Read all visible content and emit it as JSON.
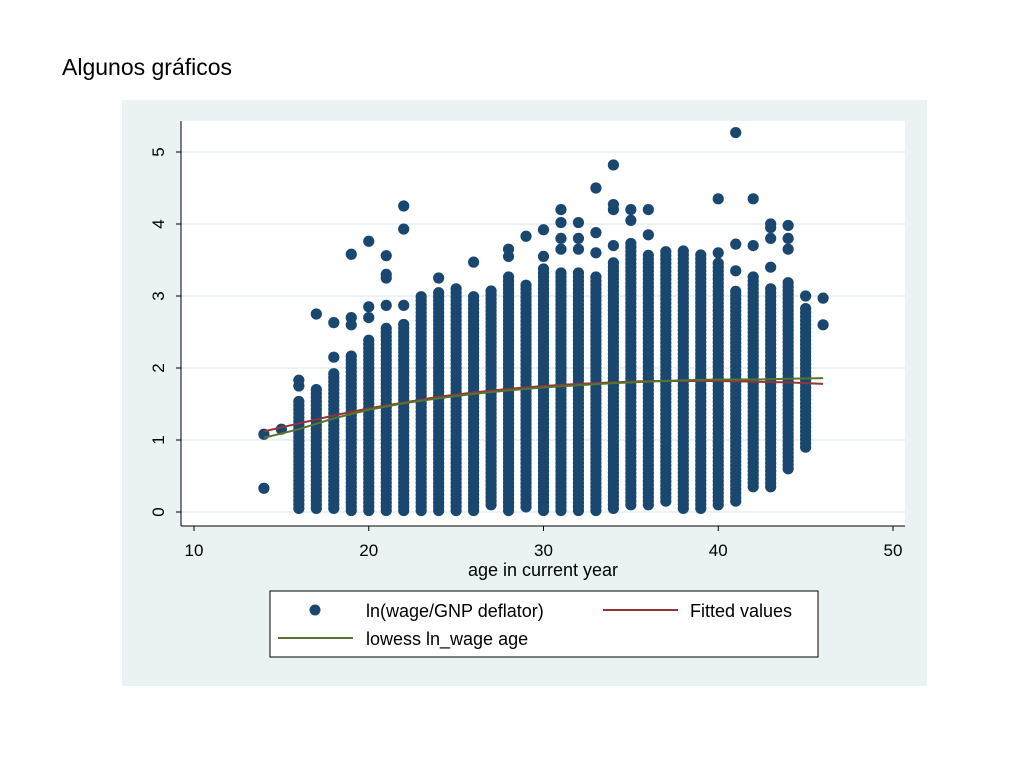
{
  "page": {
    "title": "Algunos gráficos"
  },
  "chart_data": {
    "type": "scatter",
    "xlabel": "age in current year",
    "ylabel": "",
    "xlim": [
      10,
      50
    ],
    "ylim": [
      0,
      5.4
    ],
    "x_ticks": [
      10,
      20,
      30,
      40,
      50
    ],
    "y_ticks": [
      0,
      1,
      2,
      3,
      4,
      5
    ],
    "grid": "horizontal",
    "legend_placement": "bottom",
    "colors": {
      "scatter": "#1a476f",
      "fitted": "#90353b",
      "lowess": "#55752f",
      "plot_bg": "#ffffff",
      "frame_bg": "#eaf2f3",
      "grid": "#eaf2f3"
    },
    "series": [
      {
        "name": "ln(wage/GNP deflator)",
        "kind": "scatter",
        "columns": [
          {
            "x": 14,
            "ymin": 1.08,
            "ymax": 1.08,
            "isolated": [
              0.33
            ]
          },
          {
            "x": 15,
            "ymin": 1.15,
            "ymax": 1.15,
            "isolated": []
          },
          {
            "x": 16,
            "ymin": 0.05,
            "ymax": 1.55,
            "isolated": [
              1.83,
              1.75
            ]
          },
          {
            "x": 17,
            "ymin": 0.05,
            "ymax": 1.75,
            "isolated": [
              2.75
            ]
          },
          {
            "x": 18,
            "ymin": 0.05,
            "ymax": 1.95,
            "isolated": [
              2.15,
              2.63
            ]
          },
          {
            "x": 19,
            "ymin": 0.02,
            "ymax": 2.2,
            "isolated": [
              2.6,
              2.7,
              3.58
            ]
          },
          {
            "x": 20,
            "ymin": 0.02,
            "ymax": 2.4,
            "isolated": [
              2.7,
              2.85,
              3.76
            ]
          },
          {
            "x": 21,
            "ymin": 0.02,
            "ymax": 2.6,
            "isolated": [
              2.87,
              3.25,
              3.3,
              3.56
            ]
          },
          {
            "x": 22,
            "ymin": 0.02,
            "ymax": 2.65,
            "isolated": [
              2.87,
              3.93,
              4.25
            ]
          },
          {
            "x": 23,
            "ymin": 0.02,
            "ymax": 3.0,
            "isolated": []
          },
          {
            "x": 24,
            "ymin": 0.02,
            "ymax": 3.05,
            "isolated": [
              3.25
            ]
          },
          {
            "x": 25,
            "ymin": 0.02,
            "ymax": 3.1,
            "isolated": []
          },
          {
            "x": 26,
            "ymin": 0.02,
            "ymax": 3.0,
            "isolated": [
              3.47
            ]
          },
          {
            "x": 27,
            "ymin": 0.1,
            "ymax": 3.1,
            "isolated": []
          },
          {
            "x": 28,
            "ymin": 0.02,
            "ymax": 3.3,
            "isolated": [
              3.55,
              3.65
            ]
          },
          {
            "x": 29,
            "ymin": 0.07,
            "ymax": 3.2,
            "isolated": [
              3.83
            ]
          },
          {
            "x": 30,
            "ymin": 0.02,
            "ymax": 3.4,
            "isolated": [
              3.55,
              3.92
            ]
          },
          {
            "x": 31,
            "ymin": 0.02,
            "ymax": 3.35,
            "isolated": [
              3.65,
              3.8,
              4.02,
              4.2
            ]
          },
          {
            "x": 32,
            "ymin": 0.02,
            "ymax": 3.35,
            "isolated": [
              3.65,
              3.8,
              4.02
            ]
          },
          {
            "x": 33,
            "ymin": 0.02,
            "ymax": 3.3,
            "isolated": [
              3.6,
              3.88,
              4.5
            ]
          },
          {
            "x": 34,
            "ymin": 0.05,
            "ymax": 3.5,
            "isolated": [
              3.7,
              4.2,
              4.27,
              4.82
            ]
          },
          {
            "x": 35,
            "ymin": 0.1,
            "ymax": 3.75,
            "isolated": [
              4.05,
              4.2
            ]
          },
          {
            "x": 36,
            "ymin": 0.1,
            "ymax": 3.6,
            "isolated": [
              3.85,
              4.2
            ]
          },
          {
            "x": 37,
            "ymin": 0.15,
            "ymax": 3.65,
            "isolated": []
          },
          {
            "x": 38,
            "ymin": 0.05,
            "ymax": 3.65,
            "isolated": []
          },
          {
            "x": 39,
            "ymin": 0.05,
            "ymax": 3.6,
            "isolated": []
          },
          {
            "x": 40,
            "ymin": 0.1,
            "ymax": 3.5,
            "isolated": [
              3.6,
              4.35
            ]
          },
          {
            "x": 41,
            "ymin": 0.15,
            "ymax": 3.1,
            "isolated": [
              3.35,
              3.72,
              5.27
            ]
          },
          {
            "x": 42,
            "ymin": 0.35,
            "ymax": 3.3,
            "isolated": [
              3.7,
              4.35
            ]
          },
          {
            "x": 43,
            "ymin": 0.35,
            "ymax": 3.15,
            "isolated": [
              3.4,
              3.8,
              3.95,
              4.0
            ]
          },
          {
            "x": 44,
            "ymin": 0.6,
            "ymax": 3.2,
            "isolated": [
              3.65,
              3.8,
              3.98
            ]
          },
          {
            "x": 45,
            "ymin": 0.9,
            "ymax": 2.85,
            "isolated": [
              3.0
            ]
          },
          {
            "x": 46,
            "ymin": 2.6,
            "ymax": 2.6,
            "isolated": [
              2.97
            ]
          }
        ]
      },
      {
        "name": "Fitted values",
        "kind": "line",
        "x": [
          14,
          16,
          18,
          20,
          22,
          24,
          26,
          28,
          30,
          32,
          34,
          36,
          38,
          40,
          42,
          44,
          46
        ],
        "y": [
          1.12,
          1.23,
          1.34,
          1.44,
          1.52,
          1.6,
          1.66,
          1.71,
          1.75,
          1.78,
          1.8,
          1.82,
          1.82,
          1.82,
          1.81,
          1.8,
          1.78
        ]
      },
      {
        "name": "lowess ln_wage age",
        "kind": "line",
        "x": [
          14,
          16,
          18,
          20,
          22,
          24,
          26,
          28,
          30,
          32,
          34,
          36,
          38,
          40,
          42,
          44,
          46
        ],
        "y": [
          1.03,
          1.15,
          1.3,
          1.42,
          1.51,
          1.58,
          1.64,
          1.69,
          1.73,
          1.76,
          1.79,
          1.81,
          1.83,
          1.84,
          1.84,
          1.85,
          1.86
        ]
      }
    ]
  }
}
